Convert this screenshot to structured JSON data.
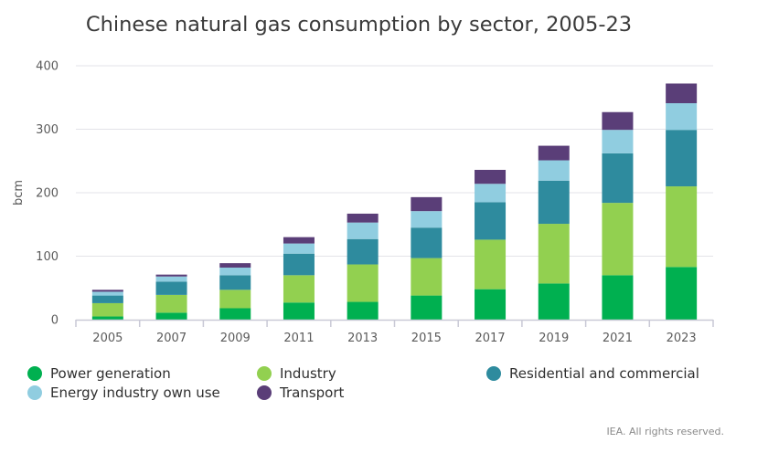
{
  "chart_data": {
    "type": "bar",
    "stacked": true,
    "title": "Chinese natural gas consumption by sector, 2005-23",
    "xlabel": "",
    "ylabel": "bcm",
    "ylim": [
      0,
      400
    ],
    "yticks": [
      0,
      100,
      200,
      300,
      400
    ],
    "grid": true,
    "legend_position": "bottom",
    "categories": [
      "2005",
      "2007",
      "2009",
      "2011",
      "2013",
      "2015",
      "2017",
      "2019",
      "2021",
      "2023"
    ],
    "series": [
      {
        "name": "Power generation",
        "color": "#00b050",
        "values": [
          5,
          11,
          18,
          27,
          28,
          38,
          48,
          57,
          70,
          83
        ]
      },
      {
        "name": "Industry",
        "color": "#92d050",
        "values": [
          21,
          28,
          29,
          43,
          59,
          59,
          78,
          94,
          114,
          127
        ]
      },
      {
        "name": "Residential and commercial",
        "color": "#2e8b9e",
        "values": [
          12,
          21,
          23,
          34,
          40,
          48,
          59,
          68,
          78,
          89
        ]
      },
      {
        "name": "Energy industry own use",
        "color": "#90cde0",
        "values": [
          6,
          8,
          12,
          16,
          26,
          26,
          29,
          32,
          37,
          42
        ]
      },
      {
        "name": "Transport",
        "color": "#5a3e78",
        "values": [
          3,
          3,
          7,
          10,
          14,
          22,
          22,
          23,
          28,
          31
        ]
      }
    ]
  },
  "credit": "IEA. All rights reserved."
}
